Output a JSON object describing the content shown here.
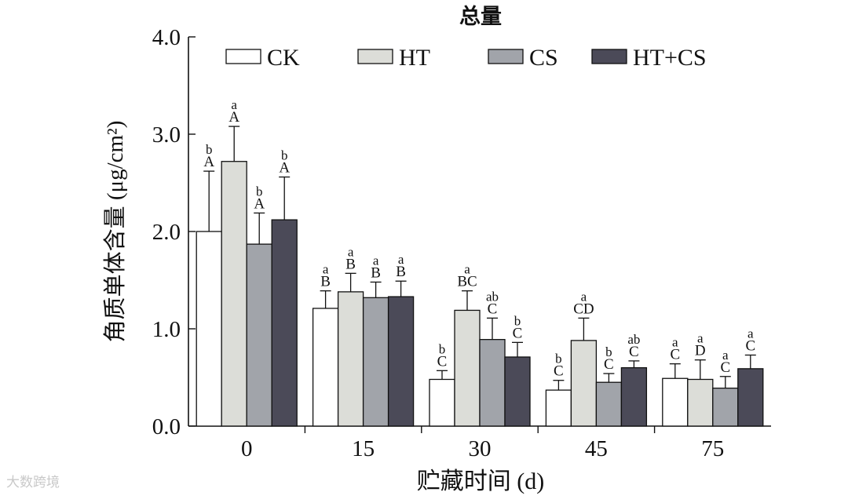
{
  "chart_data": {
    "type": "bar",
    "title": "总量",
    "xlabel": "贮藏时间 (d)",
    "ylabel": "角质单体含量 (μg/cm²)",
    "ylim": [
      0,
      4.0
    ],
    "yticks": [
      "0.0",
      "1.0",
      "2.0",
      "3.0",
      "4.0"
    ],
    "categories": [
      "0",
      "15",
      "30",
      "45",
      "75"
    ],
    "legend_position": "top",
    "grid": false,
    "series": [
      {
        "name": "CK",
        "color": "#ffffff",
        "values": [
          2.0,
          1.21,
          0.48,
          0.37,
          0.49
        ],
        "errors": [
          0.62,
          0.18,
          0.09,
          0.1,
          0.15
        ],
        "labels_lower": [
          "b",
          "a",
          "b",
          "b",
          "a"
        ],
        "labels_upper": [
          "A",
          "B",
          "C",
          "C",
          "C"
        ]
      },
      {
        "name": "HT",
        "color": "#dcddd8",
        "values": [
          2.72,
          1.38,
          1.19,
          0.88,
          0.48
        ],
        "errors": [
          0.36,
          0.19,
          0.2,
          0.23,
          0.2
        ],
        "labels_lower": [
          "a",
          "a",
          "a",
          "a",
          "a"
        ],
        "labels_upper": [
          "A",
          "B",
          "BC",
          "CD",
          "D"
        ]
      },
      {
        "name": "CS",
        "color": "#a1a4aa",
        "values": [
          1.87,
          1.32,
          0.89,
          0.45,
          0.39
        ],
        "errors": [
          0.32,
          0.16,
          0.22,
          0.09,
          0.12
        ],
        "labels_lower": [
          "b",
          "a",
          "ab",
          "b",
          "a"
        ],
        "labels_upper": [
          "A",
          "B",
          "C",
          "C",
          "C"
        ]
      },
      {
        "name": "HT+CS",
        "color": "#4b4a58",
        "values": [
          2.12,
          1.33,
          0.71,
          0.6,
          0.59
        ],
        "errors": [
          0.44,
          0.16,
          0.15,
          0.07,
          0.14
        ],
        "labels_lower": [
          "b",
          "a",
          "b",
          "ab",
          "a"
        ],
        "labels_upper": [
          "A",
          "B",
          "C",
          "C",
          "C"
        ]
      }
    ]
  },
  "watermark": "大数跨境"
}
